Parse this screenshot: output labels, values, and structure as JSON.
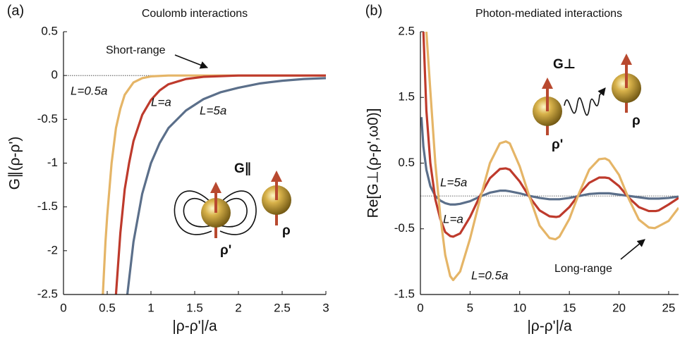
{
  "chart_data": [
    {
      "type": "line",
      "panel_label": "(a)",
      "title": "Coulomb interactions",
      "xlabel": "|ρ-ρ'|/a",
      "ylabel": "G∥(ρ-ρ')",
      "xlim": [
        0,
        3
      ],
      "ylim": [
        -2.5,
        0.5
      ],
      "xticks": [
        0,
        0.5,
        1,
        1.5,
        2,
        2.5,
        3
      ],
      "yticks": [
        0.5,
        0,
        -0.5,
        -1,
        -1.5,
        -2,
        -2.5
      ],
      "hline": 0,
      "series": [
        {
          "name": "L=0.5a",
          "color": "#e5b567",
          "x": [
            0.45,
            0.48,
            0.5,
            0.55,
            0.6,
            0.65,
            0.7,
            0.8,
            0.9,
            1.0,
            1.2,
            1.5,
            2,
            3
          ],
          "values": [
            -2.5,
            -1.9,
            -1.6,
            -1.0,
            -0.6,
            -0.38,
            -0.22,
            -0.08,
            -0.03,
            -0.01,
            0,
            0,
            0,
            0
          ]
        },
        {
          "name": "L=a",
          "color": "#be3a2c",
          "x": [
            0.6,
            0.65,
            0.7,
            0.75,
            0.8,
            0.9,
            1.0,
            1.1,
            1.2,
            1.4,
            1.6,
            2,
            2.5,
            3
          ],
          "values": [
            -2.5,
            -1.8,
            -1.3,
            -1.0,
            -0.75,
            -0.45,
            -0.28,
            -0.17,
            -0.1,
            -0.04,
            -0.015,
            0,
            0,
            0
          ]
        },
        {
          "name": "L=5a",
          "color": "#5b6f8a",
          "x": [
            0.73,
            0.8,
            0.9,
            1.0,
            1.1,
            1.2,
            1.4,
            1.6,
            1.8,
            2.0,
            2.25,
            2.5,
            2.75,
            3
          ],
          "values": [
            -2.5,
            -1.9,
            -1.35,
            -1.0,
            -0.77,
            -0.6,
            -0.4,
            -0.27,
            -0.19,
            -0.14,
            -0.09,
            -0.06,
            -0.04,
            -0.03
          ]
        }
      ],
      "annotations": [
        "Short-range",
        "G∥",
        "ρ'",
        "ρ"
      ]
    },
    {
      "type": "line",
      "panel_label": "(b)",
      "title": "Photon-mediated interactions",
      "xlabel": "|ρ-ρ'|/a",
      "ylabel": "Re[G⊥(ρ-ρ',ω0)]",
      "xlim": [
        0,
        26
      ],
      "ylim": [
        -1.5,
        2.5
      ],
      "xticks": [
        0,
        5,
        10,
        15,
        20,
        25
      ],
      "yticks": [
        2.5,
        1.5,
        0.5,
        -0.5,
        -1.5
      ],
      "hline": 0,
      "series": [
        {
          "name": "L=5a",
          "color": "#5b6f8a",
          "x": [
            0.1,
            0.3,
            0.6,
            1,
            1.5,
            2,
            2.5,
            3,
            3.5,
            4,
            5,
            6,
            7,
            8,
            8.6,
            9,
            10,
            11,
            12,
            13,
            13.6,
            14,
            15,
            16,
            17,
            18,
            18.6,
            19,
            20,
            21,
            22,
            23,
            23.6,
            24,
            25,
            26
          ],
          "values": [
            1.2,
            0.75,
            0.4,
            0.15,
            0.0,
            -0.07,
            -0.11,
            -0.13,
            -0.13,
            -0.12,
            -0.08,
            -0.01,
            0.05,
            0.08,
            0.08,
            0.07,
            0.04,
            0.0,
            -0.03,
            -0.05,
            -0.05,
            -0.05,
            -0.03,
            0.0,
            0.03,
            0.04,
            0.04,
            0.04,
            0.02,
            0.0,
            -0.02,
            -0.04,
            -0.04,
            -0.04,
            -0.03,
            -0.01
          ]
        },
        {
          "name": "L=a",
          "color": "#be3a2c",
          "x": [
            0.3,
            0.6,
            1,
            1.5,
            2,
            2.5,
            3,
            3.3,
            4,
            5,
            6,
            7,
            8,
            8.6,
            9,
            10,
            11,
            12,
            13,
            13.7,
            14,
            15,
            16,
            17,
            18,
            18.6,
            19,
            20,
            21,
            22,
            23,
            23.7,
            24,
            25,
            26
          ],
          "values": [
            2.5,
            1.3,
            0.5,
            -0.05,
            -0.35,
            -0.55,
            -0.61,
            -0.62,
            -0.57,
            -0.32,
            0.0,
            0.27,
            0.41,
            0.42,
            0.4,
            0.22,
            -0.02,
            -0.22,
            -0.31,
            -0.32,
            -0.31,
            -0.17,
            0.03,
            0.2,
            0.28,
            0.28,
            0.27,
            0.15,
            -0.03,
            -0.17,
            -0.23,
            -0.23,
            -0.22,
            -0.13,
            -0.03
          ]
        },
        {
          "name": "L=0.5a",
          "color": "#e5b567",
          "x": [
            0.6,
            1,
            1.5,
            2,
            2.5,
            3,
            3.3,
            4,
            5,
            6,
            7,
            8,
            8.6,
            9,
            10,
            11,
            12,
            13,
            13.6,
            14,
            15,
            16,
            17,
            18,
            18.6,
            19,
            20,
            21,
            22,
            23,
            23.6,
            24,
            25,
            26
          ],
          "values": [
            2.5,
            1.6,
            0.5,
            -0.3,
            -0.9,
            -1.22,
            -1.28,
            -1.15,
            -0.65,
            -0.05,
            0.5,
            0.8,
            0.83,
            0.8,
            0.45,
            -0.02,
            -0.45,
            -0.64,
            -0.66,
            -0.62,
            -0.35,
            0.05,
            0.4,
            0.56,
            0.57,
            0.54,
            0.32,
            -0.05,
            -0.36,
            -0.48,
            -0.49,
            -0.46,
            -0.38,
            -0.18
          ]
        }
      ],
      "annotations": [
        "Long-range",
        "G⊥",
        "ρ'",
        "ρ"
      ]
    }
  ]
}
